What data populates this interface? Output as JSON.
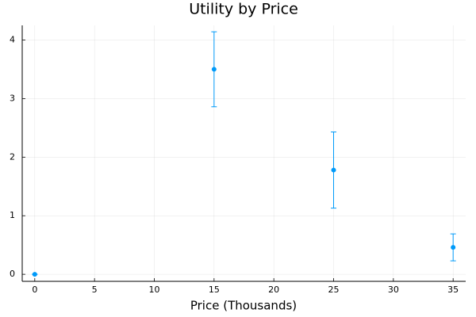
{
  "chart_data": {
    "type": "scatter",
    "title": "Utility by Price",
    "x_label": "Price (Thousands)",
    "x": [
      0,
      15,
      25,
      35
    ],
    "values": [
      0,
      3.5,
      1.78,
      0.46
    ],
    "errors": [
      0,
      0.64,
      0.65,
      0.23
    ],
    "color": "#009af9",
    "xlim": [
      -1.05,
      36.05
    ],
    "xticks": [
      0,
      5,
      10,
      15,
      20,
      25,
      30,
      35
    ],
    "ylim": [
      -0.12,
      4.25
    ],
    "yticks": [
      0,
      1,
      2,
      3,
      4
    ],
    "grid": true
  }
}
